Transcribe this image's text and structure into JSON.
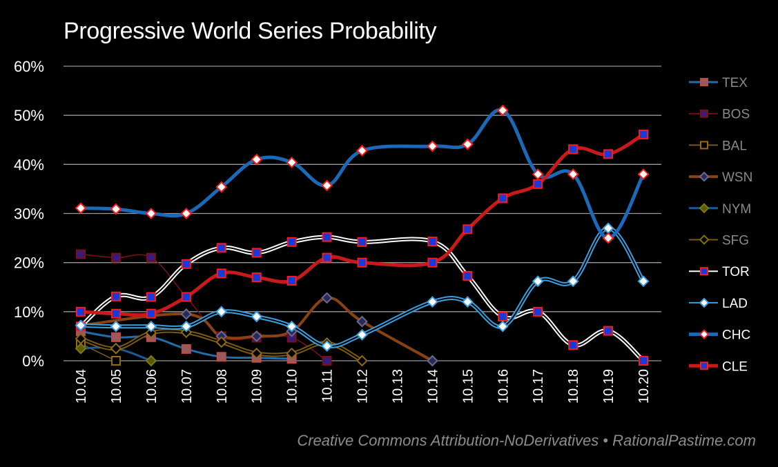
{
  "title": "Progressive World Series Probability",
  "credit": "Creative Commons Attribution-NoDerivatives • RationalPastime.com",
  "chart_data": {
    "type": "line",
    "title": "Progressive World Series Probability",
    "xlabel": "",
    "ylabel": "",
    "ylim": [
      0,
      60
    ],
    "yticks": [
      "0%",
      "10%",
      "20%",
      "30%",
      "40%",
      "50%",
      "60%"
    ],
    "categories": [
      "10.04",
      "10.05",
      "10.06",
      "10.07",
      "10.08",
      "10.09",
      "10.10",
      "10.11",
      "10.12",
      "10.13",
      "10.14",
      "10.15",
      "10.16",
      "10.17",
      "10.18",
      "10.19",
      "10.20"
    ],
    "grid": true,
    "legend": "right",
    "series": [
      {
        "name": "TEX",
        "color": "#a01818",
        "line": "#1f6fad",
        "marker": "square",
        "fill": "#a03a3a",
        "values": [
          6,
          4.8,
          4.8,
          2.4,
          0.8,
          0.6,
          0.4,
          null,
          null,
          null,
          null,
          null,
          null,
          null,
          null,
          null,
          null
        ]
      },
      {
        "name": "BOS",
        "color": "#7a1010",
        "line": "#7a1010",
        "marker": "square",
        "fill": "#3a1a8a",
        "values": [
          21.7,
          21,
          21,
          13,
          5,
          4.7,
          4.7,
          0,
          null,
          null,
          null,
          null,
          null,
          null,
          null,
          null,
          null
        ]
      },
      {
        "name": "BAL",
        "color": "#9a6a0a",
        "line": "#7a5a12",
        "marker": "square",
        "fill": "#000000",
        "values": [
          3.5,
          0,
          null,
          null,
          null,
          null,
          null,
          null,
          null,
          null,
          null,
          null,
          null,
          null,
          null,
          null,
          null
        ]
      },
      {
        "name": "WSN",
        "color": "#8a4212",
        "line": "#8a4212",
        "marker": "diamond",
        "fill": "#2a2a4a",
        "values": [
          7.2,
          null,
          null,
          9.5,
          5,
          5,
          6,
          12.8,
          8,
          null,
          0,
          null,
          null,
          null,
          null,
          null,
          null
        ]
      },
      {
        "name": "NYM",
        "color": "#1a5a9a",
        "line": "#1a5a9a",
        "marker": "diamond",
        "fill": "#9a8a10",
        "values": [
          2.5,
          2.5,
          0,
          null,
          null,
          null,
          null,
          null,
          null,
          null,
          null,
          null,
          null,
          null,
          null,
          null,
          null
        ]
      },
      {
        "name": "SFG",
        "color": "#7a5a12",
        "line": "#7a5a12",
        "marker": "diamond",
        "fill": "#000000",
        "values": [
          4.5,
          2.5,
          5.7,
          5.8,
          3.8,
          1.5,
          1.5,
          3.6,
          0,
          null,
          null,
          null,
          null,
          null,
          null,
          null,
          null
        ]
      },
      {
        "name": "TOR",
        "color": "#ffffff",
        "line": "#ffffff",
        "marker": "square",
        "fill": "#1a2ad0",
        "values": [
          7,
          13.1,
          13,
          19.7,
          23,
          22,
          24.2,
          25.2,
          24.2,
          null,
          24.3,
          17.3,
          9,
          10,
          3.2,
          6.1,
          0
        ]
      },
      {
        "name": "LAD",
        "color": "#3aa0e0",
        "line": "#3aa0e0",
        "marker": "diamond",
        "fill": "#ffffff",
        "values": [
          7.2,
          7,
          7,
          7,
          10,
          9,
          7,
          3,
          5.3,
          null,
          12,
          12,
          7,
          16.2,
          16.2,
          27,
          16.2
        ]
      },
      {
        "name": "CHC",
        "color": "#1a6ab8",
        "line": "#1a6ab8",
        "marker": "diamond",
        "fill": "#ff2a1a",
        "values": [
          31.1,
          30.9,
          30,
          30,
          35.4,
          41,
          40.4,
          35.7,
          42.8,
          null,
          43.7,
          44.1,
          51,
          38,
          38,
          25,
          38
        ]
      },
      {
        "name": "CLE",
        "color": "#c81a1a",
        "line": "#c81a1a",
        "marker": "square",
        "fill": "#2a2ad8",
        "values": [
          10,
          9.6,
          9.6,
          13,
          17.8,
          17,
          16.3,
          21,
          20,
          null,
          20,
          26.8,
          33.1,
          36,
          43.1,
          42.1,
          46.1
        ]
      }
    ]
  }
}
